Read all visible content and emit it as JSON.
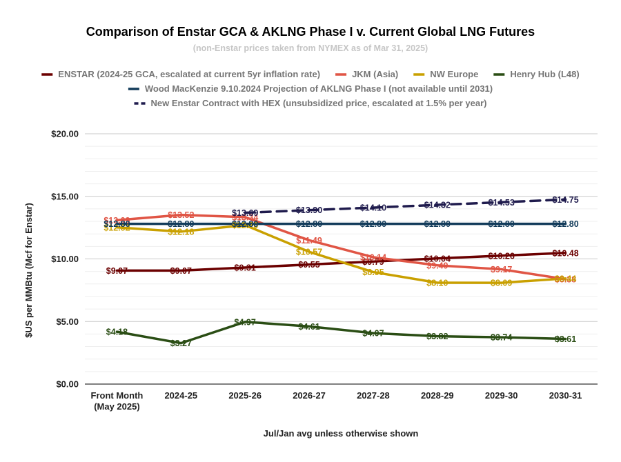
{
  "chart_data": {
    "type": "line",
    "title": "Comparison of Enstar GCA & AKLNG Phase I v. Current Global LNG Futures",
    "subtitle": "(non-Enstar prices taken from NYMEX as of Mar 31, 2025)",
    "xlabel": "Jul/Jan avg unless otherwise shown",
    "ylabel": "$US per MMBtu (Mcf for Enstar)",
    "ylim": [
      0,
      20
    ],
    "yticks": [
      "$0.00",
      "$5.00",
      "$10.00",
      "$15.00",
      "$20.00"
    ],
    "ytick_values": [
      0,
      5,
      10,
      15,
      20
    ],
    "grid": true,
    "legend_position": "top",
    "categories": [
      [
        "Front Month",
        "(May 2025)"
      ],
      [
        "2024-25"
      ],
      [
        "2025-26"
      ],
      [
        "2026-27"
      ],
      [
        "2027-28"
      ],
      [
        "2028-29"
      ],
      [
        "2029-30"
      ],
      [
        "2030-31"
      ]
    ],
    "series": [
      {
        "name": "ENSTAR (2024-25 GCA, escalated at current 5yr inflation rate)",
        "color": "#6b0000",
        "dash": false,
        "values": [
          9.07,
          9.07,
          9.31,
          9.55,
          9.79,
          10.04,
          10.26,
          10.48
        ],
        "labels": [
          "$9.07",
          "$9.07",
          "$9.31",
          "$9.55",
          "$9.79",
          "$10.04",
          "$10.26",
          "$10.48"
        ]
      },
      {
        "name": "JKM (Asia)",
        "color": "#e05545",
        "dash": false,
        "values": [
          13.09,
          13.52,
          13.34,
          11.49,
          10.14,
          9.49,
          9.17,
          8.38
        ],
        "labels": [
          "$13.09",
          "$13.52",
          "$13.34",
          "$11.49",
          "$10.14",
          "$9.49",
          "$9.17",
          "$8.38"
        ]
      },
      {
        "name": "NW Europe",
        "color": "#c9a000",
        "dash": false,
        "values": [
          12.52,
          12.18,
          12.7,
          10.57,
          8.95,
          8.1,
          8.09,
          8.44
        ],
        "labels": [
          "$12.52",
          "$12.18",
          "$12.70",
          "$10.57",
          "$8.95",
          "$8.10",
          "$8.09",
          "$8.44"
        ]
      },
      {
        "name": "Henry Hub (L48)",
        "color": "#2a4d14",
        "dash": false,
        "values": [
          4.18,
          3.27,
          4.97,
          4.61,
          4.07,
          3.82,
          3.74,
          3.61
        ],
        "labels": [
          "$4.18",
          "$3.27",
          "$4.97",
          "$4.61",
          "$4.07",
          "$3.82",
          "$3.74",
          "$3.61"
        ]
      },
      {
        "name": "Wood MacKenzie 9.10.2024 Projection of AKLNG Phase I (not available until 2031)",
        "color": "#123b5a",
        "dash": false,
        "values": [
          12.8,
          12.8,
          12.8,
          12.8,
          12.8,
          12.8,
          12.8,
          12.8
        ],
        "labels": [
          "$12.80",
          "$12.80",
          "$12.80",
          "$12.80",
          "$12.80",
          "$12.80",
          "$12.80",
          "$12.80"
        ]
      },
      {
        "name": "New Enstar Contract with HEX (unsubsidized price, escalated at 1.5% per year)",
        "color": "#1f1b4d",
        "dash": true,
        "values": [
          null,
          null,
          13.69,
          13.9,
          14.1,
          14.32,
          14.53,
          14.75
        ],
        "labels": [
          null,
          null,
          "$13.69",
          "$13.90",
          "$14.10",
          "$14.32",
          "$14.53",
          "$14.75"
        ]
      }
    ]
  }
}
